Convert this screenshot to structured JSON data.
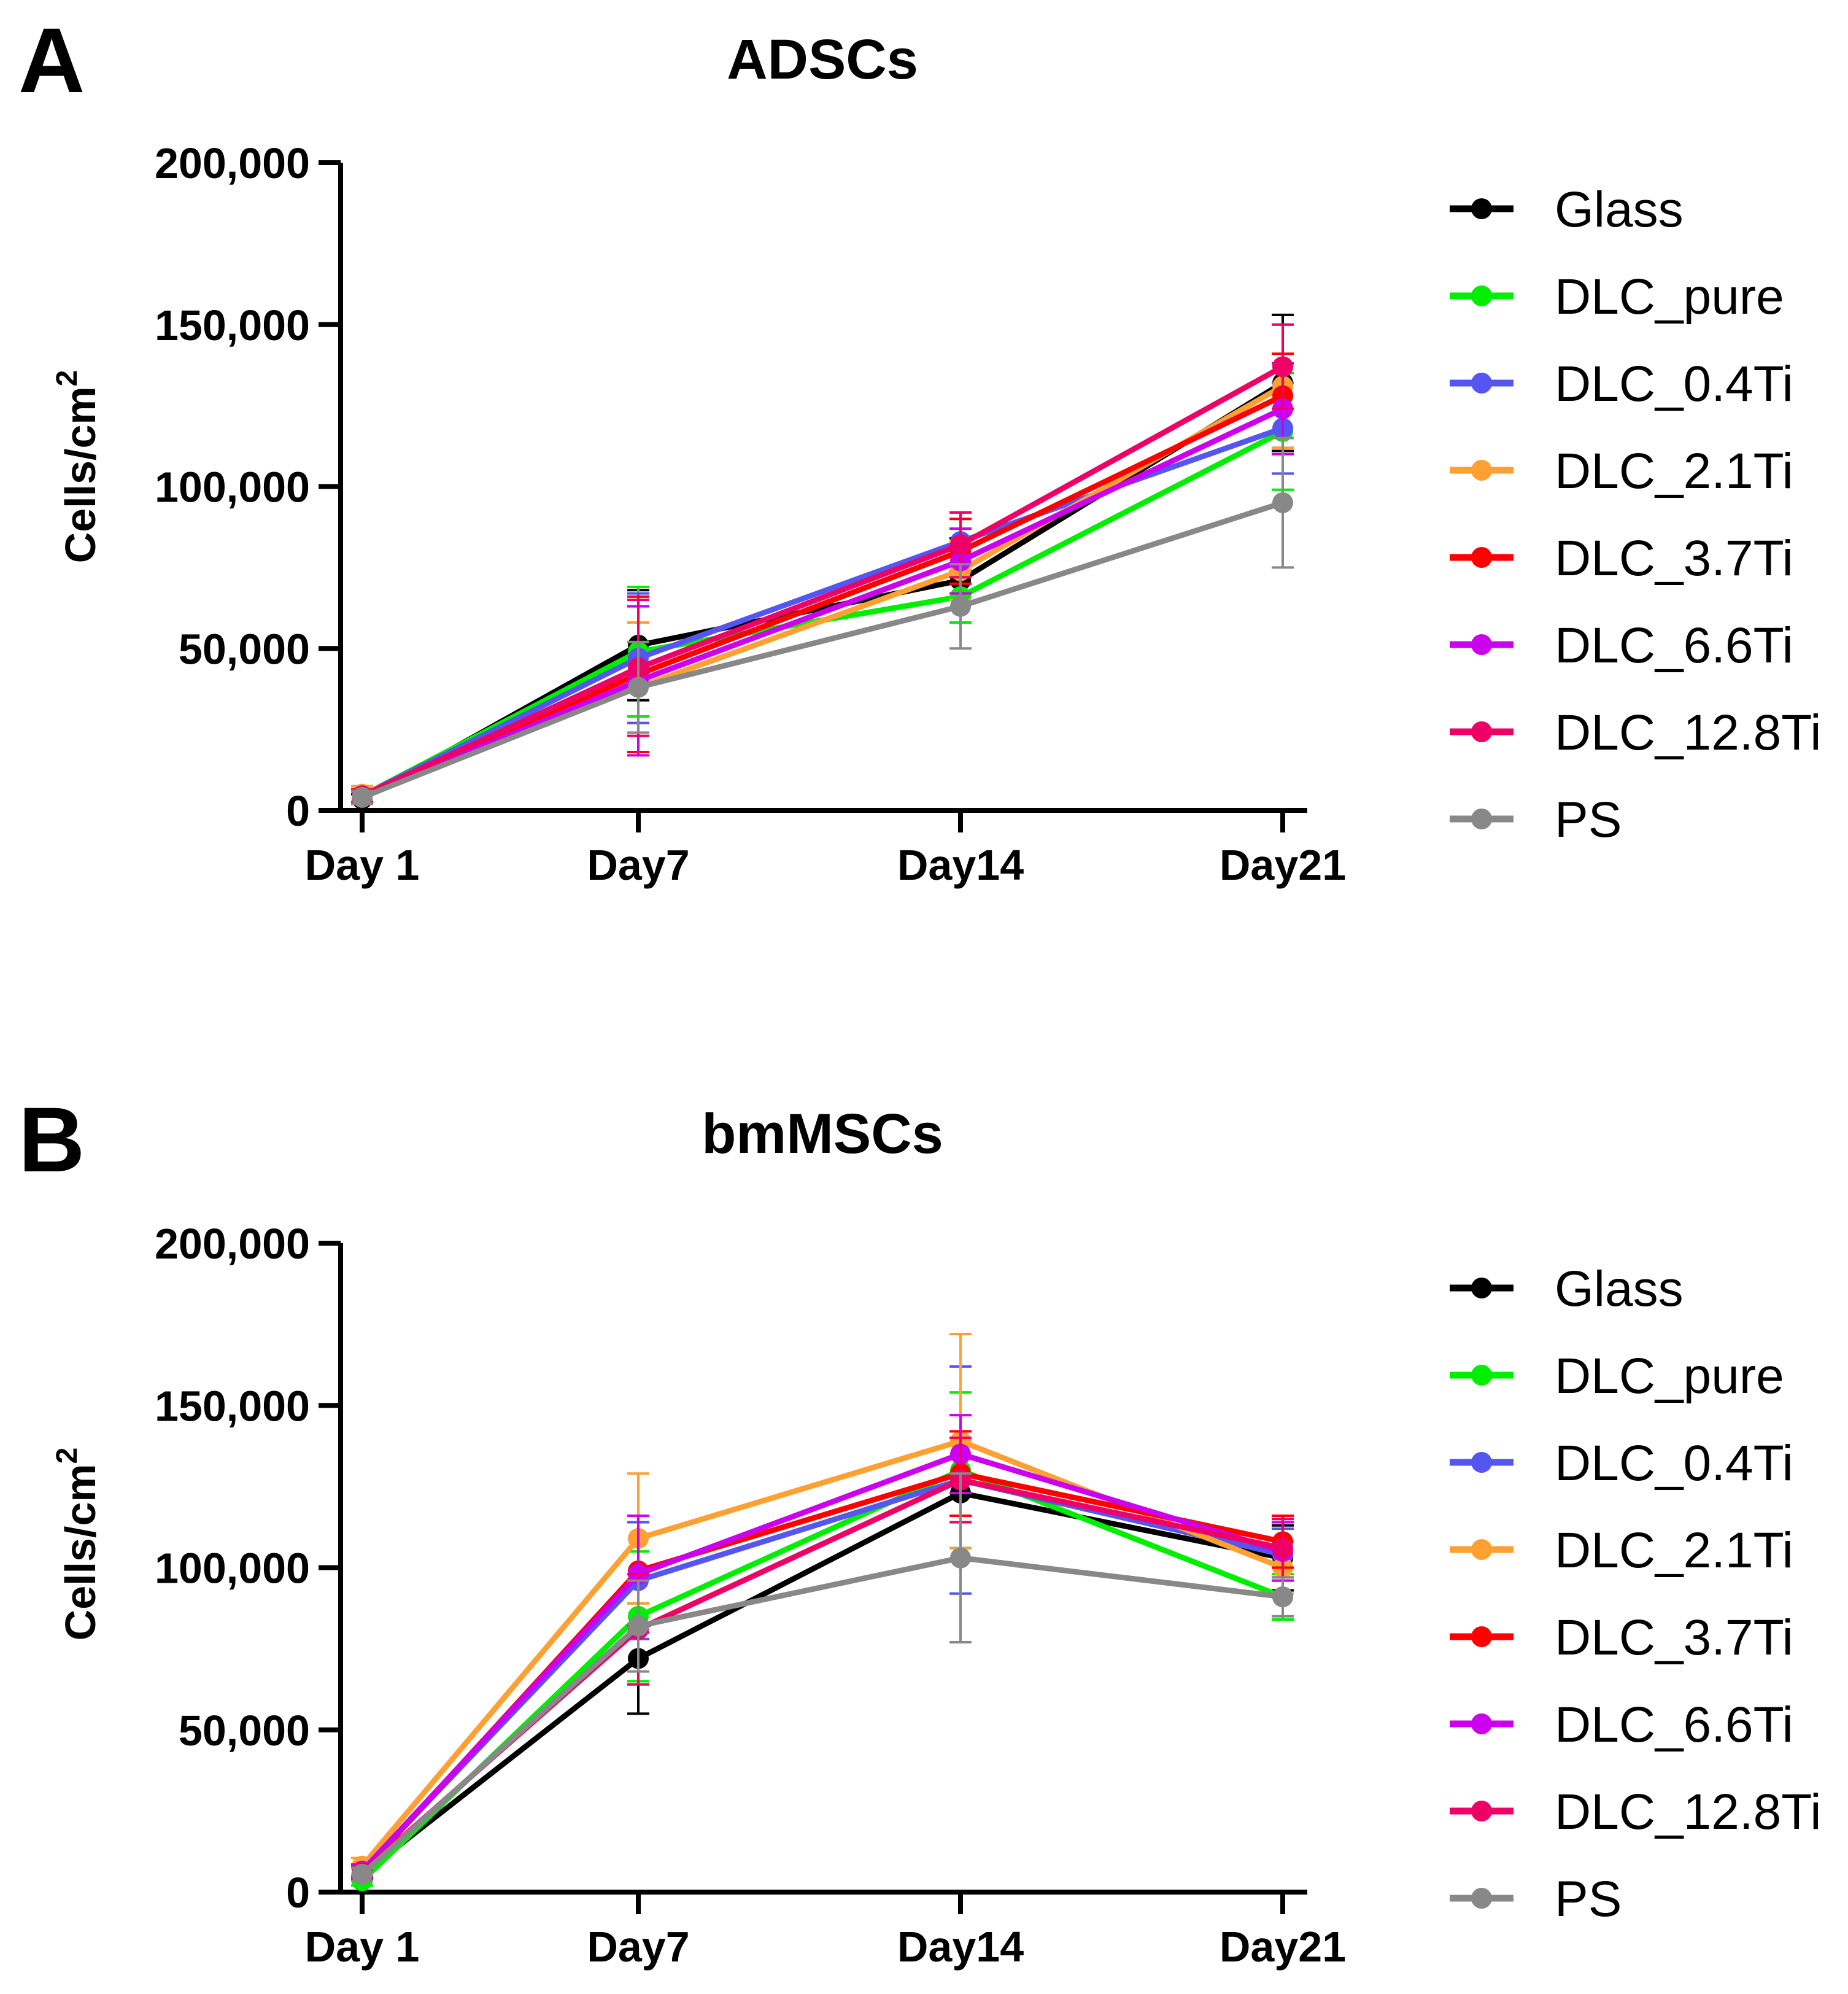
{
  "colors": {
    "Glass": "#000000",
    "DLC_pure": "#00ee00",
    "DLC_0.4Ti": "#5555f2",
    "DLC_2.1Ti": "#ffa033",
    "DLC_3.7Ti": "#ff0000",
    "DLC_6.6Ti": "#cc00ee",
    "DLC_12.8Ti": "#ee0066",
    "PS": "#888888"
  },
  "chart_data": [
    {
      "panel": "A",
      "type": "line",
      "title": "ADSCs",
      "xlabel": "",
      "ylabel": "Cells/cm",
      "ylabel_superscript": "2",
      "categories": [
        "Day 1",
        "Day7",
        "Day14",
        "Day21"
      ],
      "ylim": [
        0,
        200000
      ],
      "yticks": [
        0,
        50000,
        100000,
        150000,
        200000
      ],
      "ytick_labels": [
        "0",
        "50,000",
        "100,000",
        "150,000",
        "200,000"
      ],
      "legend_position": "right",
      "series": [
        {
          "name": "Glass",
          "values": [
            3500,
            51000,
            71000,
            132000
          ],
          "errors": [
            1500,
            17000,
            13000,
            21000
          ]
        },
        {
          "name": "DLC_pure",
          "values": [
            4500,
            49000,
            66000,
            117000
          ],
          "errors": [
            2000,
            20000,
            8000,
            18000
          ]
        },
        {
          "name": "DLC_0.4Ti",
          "values": [
            4500,
            47000,
            83000,
            118000
          ],
          "errors": [
            2000,
            20000,
            9000,
            14000
          ]
        },
        {
          "name": "DLC_2.1Ti",
          "values": [
            5000,
            38000,
            74000,
            131000
          ],
          "errors": [
            2500,
            20000,
            9000,
            19000
          ]
        },
        {
          "name": "DLC_3.7Ti",
          "values": [
            4500,
            42000,
            80000,
            128000
          ],
          "errors": [
            2000,
            24000,
            10000,
            13000
          ]
        },
        {
          "name": "DLC_6.6Ti",
          "values": [
            4000,
            40000,
            77000,
            124000
          ],
          "errors": [
            2000,
            23000,
            10000,
            14000
          ]
        },
        {
          "name": "DLC_12.8Ti",
          "values": [
            4500,
            44000,
            82000,
            137000
          ],
          "errors": [
            2000,
            21000,
            10000,
            13000
          ]
        },
        {
          "name": "PS",
          "values": [
            4000,
            38000,
            63000,
            95000
          ],
          "errors": [
            2000,
            14000,
            13000,
            20000
          ]
        }
      ]
    },
    {
      "panel": "B",
      "type": "line",
      "title": "bmMSCs",
      "xlabel": "",
      "ylabel": "Cells/cm",
      "ylabel_superscript": "2",
      "categories": [
        "Day 1",
        "Day7",
        "Day14",
        "Day21"
      ],
      "ylim": [
        0,
        200000
      ],
      "yticks": [
        0,
        50000,
        100000,
        150000,
        200000
      ],
      "ytick_labels": [
        "0",
        "50,000",
        "100,000",
        "150,000",
        "200,000"
      ],
      "legend_position": "right",
      "series": [
        {
          "name": "Glass",
          "values": [
            5500,
            72000,
            123000,
            103000
          ],
          "errors": [
            2000,
            17000,
            17000,
            10000
          ]
        },
        {
          "name": "DLC_pure",
          "values": [
            3500,
            85000,
            130000,
            91000
          ],
          "errors": [
            1500,
            20000,
            24000,
            7000
          ]
        },
        {
          "name": "DLC_0.4Ti",
          "values": [
            6500,
            96000,
            127000,
            104000
          ],
          "errors": [
            2000,
            18000,
            35000,
            8000
          ]
        },
        {
          "name": "DLC_2.1Ti",
          "values": [
            8000,
            109000,
            139000,
            100000
          ],
          "errors": [
            2500,
            20000,
            33000,
            8000
          ]
        },
        {
          "name": "DLC_3.7Ti",
          "values": [
            6000,
            99000,
            129000,
            108000
          ],
          "errors": [
            2000,
            17000,
            13000,
            8000
          ]
        },
        {
          "name": "DLC_6.6Ti",
          "values": [
            6500,
            98000,
            135000,
            105000
          ],
          "errors": [
            2000,
            18000,
            12000,
            9000
          ]
        },
        {
          "name": "DLC_12.8Ti",
          "values": [
            6000,
            81000,
            127000,
            106000
          ],
          "errors": [
            2000,
            17000,
            13000,
            9000
          ]
        },
        {
          "name": "PS",
          "values": [
            5500,
            82000,
            103000,
            91000
          ],
          "errors": [
            2000,
            14000,
            26000,
            6000
          ]
        }
      ]
    }
  ]
}
